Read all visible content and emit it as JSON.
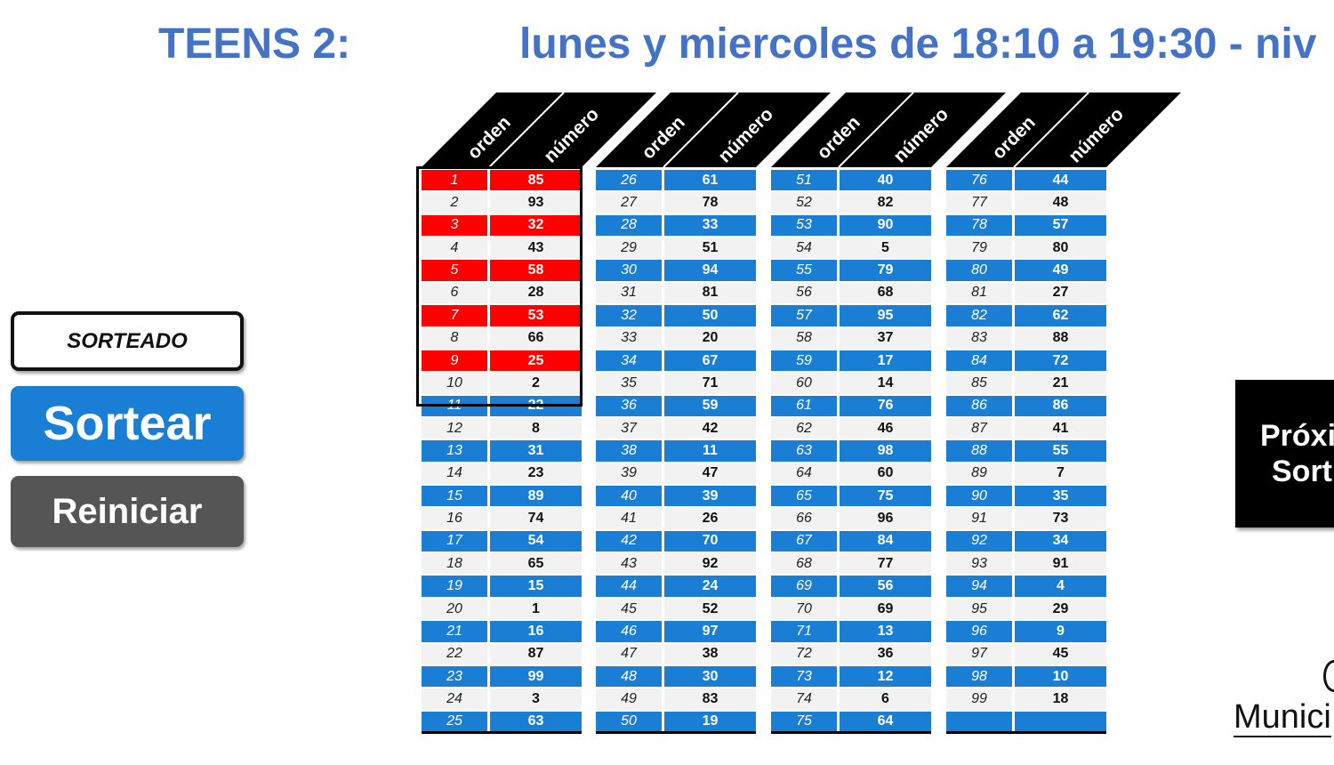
{
  "header": {
    "title_left": "TEENS 2:",
    "title_right": "lunes y miercoles de 18:10 a 19:30 - niv"
  },
  "buttons": {
    "sorteado_label": "SORTEADO",
    "sortear_label": "Sortear",
    "reiniciar_label": "Reiniciar"
  },
  "table": {
    "header_orden": "orden",
    "header_numero": "número",
    "columns": [
      [
        {
          "orden": "1",
          "numero": "85",
          "state": "red"
        },
        {
          "orden": "2",
          "numero": "93",
          "state": "white"
        },
        {
          "orden": "3",
          "numero": "32",
          "state": "red"
        },
        {
          "orden": "4",
          "numero": "43",
          "state": "white"
        },
        {
          "orden": "5",
          "numero": "58",
          "state": "red"
        },
        {
          "orden": "6",
          "numero": "28",
          "state": "white"
        },
        {
          "orden": "7",
          "numero": "53",
          "state": "red"
        },
        {
          "orden": "8",
          "numero": "66",
          "state": "white"
        },
        {
          "orden": "9",
          "numero": "25",
          "state": "red"
        },
        {
          "orden": "10",
          "numero": "2",
          "state": "white"
        },
        {
          "orden": "11",
          "numero": "22",
          "state": "blue"
        },
        {
          "orden": "12",
          "numero": "8",
          "state": "white"
        },
        {
          "orden": "13",
          "numero": "31",
          "state": "blue"
        },
        {
          "orden": "14",
          "numero": "23",
          "state": "white"
        },
        {
          "orden": "15",
          "numero": "89",
          "state": "blue"
        },
        {
          "orden": "16",
          "numero": "74",
          "state": "white"
        },
        {
          "orden": "17",
          "numero": "54",
          "state": "blue"
        },
        {
          "orden": "18",
          "numero": "65",
          "state": "white"
        },
        {
          "orden": "19",
          "numero": "15",
          "state": "blue"
        },
        {
          "orden": "20",
          "numero": "1",
          "state": "white"
        },
        {
          "orden": "21",
          "numero": "16",
          "state": "blue"
        },
        {
          "orden": "22",
          "numero": "87",
          "state": "white"
        },
        {
          "orden": "23",
          "numero": "99",
          "state": "blue"
        },
        {
          "orden": "24",
          "numero": "3",
          "state": "white"
        },
        {
          "orden": "25",
          "numero": "63",
          "state": "blue"
        }
      ],
      [
        {
          "orden": "26",
          "numero": "61",
          "state": "blue"
        },
        {
          "orden": "27",
          "numero": "78",
          "state": "white"
        },
        {
          "orden": "28",
          "numero": "33",
          "state": "blue"
        },
        {
          "orden": "29",
          "numero": "51",
          "state": "white"
        },
        {
          "orden": "30",
          "numero": "94",
          "state": "blue"
        },
        {
          "orden": "31",
          "numero": "81",
          "state": "white"
        },
        {
          "orden": "32",
          "numero": "50",
          "state": "blue"
        },
        {
          "orden": "33",
          "numero": "20",
          "state": "white"
        },
        {
          "orden": "34",
          "numero": "67",
          "state": "blue"
        },
        {
          "orden": "35",
          "numero": "71",
          "state": "white"
        },
        {
          "orden": "36",
          "numero": "59",
          "state": "blue"
        },
        {
          "orden": "37",
          "numero": "42",
          "state": "white"
        },
        {
          "orden": "38",
          "numero": "11",
          "state": "blue"
        },
        {
          "orden": "39",
          "numero": "47",
          "state": "white"
        },
        {
          "orden": "40",
          "numero": "39",
          "state": "blue"
        },
        {
          "orden": "41",
          "numero": "26",
          "state": "white"
        },
        {
          "orden": "42",
          "numero": "70",
          "state": "blue"
        },
        {
          "orden": "43",
          "numero": "92",
          "state": "white"
        },
        {
          "orden": "44",
          "numero": "24",
          "state": "blue"
        },
        {
          "orden": "45",
          "numero": "52",
          "state": "white"
        },
        {
          "orden": "46",
          "numero": "97",
          "state": "blue"
        },
        {
          "orden": "47",
          "numero": "38",
          "state": "white"
        },
        {
          "orden": "48",
          "numero": "30",
          "state": "blue"
        },
        {
          "orden": "49",
          "numero": "83",
          "state": "white"
        },
        {
          "orden": "50",
          "numero": "19",
          "state": "blue"
        }
      ],
      [
        {
          "orden": "51",
          "numero": "40",
          "state": "blue"
        },
        {
          "orden": "52",
          "numero": "82",
          "state": "white"
        },
        {
          "orden": "53",
          "numero": "90",
          "state": "blue"
        },
        {
          "orden": "54",
          "numero": "5",
          "state": "white"
        },
        {
          "orden": "55",
          "numero": "79",
          "state": "blue"
        },
        {
          "orden": "56",
          "numero": "68",
          "state": "white"
        },
        {
          "orden": "57",
          "numero": "95",
          "state": "blue"
        },
        {
          "orden": "58",
          "numero": "37",
          "state": "white"
        },
        {
          "orden": "59",
          "numero": "17",
          "state": "blue"
        },
        {
          "orden": "60",
          "numero": "14",
          "state": "white"
        },
        {
          "orden": "61",
          "numero": "76",
          "state": "blue"
        },
        {
          "orden": "62",
          "numero": "46",
          "state": "white"
        },
        {
          "orden": "63",
          "numero": "98",
          "state": "blue"
        },
        {
          "orden": "64",
          "numero": "60",
          "state": "white"
        },
        {
          "orden": "65",
          "numero": "75",
          "state": "blue"
        },
        {
          "orden": "66",
          "numero": "96",
          "state": "white"
        },
        {
          "orden": "67",
          "numero": "84",
          "state": "blue"
        },
        {
          "orden": "68",
          "numero": "77",
          "state": "white"
        },
        {
          "orden": "69",
          "numero": "56",
          "state": "blue"
        },
        {
          "orden": "70",
          "numero": "69",
          "state": "white"
        },
        {
          "orden": "71",
          "numero": "13",
          "state": "blue"
        },
        {
          "orden": "72",
          "numero": "36",
          "state": "white"
        },
        {
          "orden": "73",
          "numero": "12",
          "state": "blue"
        },
        {
          "orden": "74",
          "numero": "6",
          "state": "white"
        },
        {
          "orden": "75",
          "numero": "64",
          "state": "blue"
        }
      ],
      [
        {
          "orden": "76",
          "numero": "44",
          "state": "blue"
        },
        {
          "orden": "77",
          "numero": "48",
          "state": "white"
        },
        {
          "orden": "78",
          "numero": "57",
          "state": "blue"
        },
        {
          "orden": "79",
          "numero": "80",
          "state": "white"
        },
        {
          "orden": "80",
          "numero": "49",
          "state": "blue"
        },
        {
          "orden": "81",
          "numero": "27",
          "state": "white"
        },
        {
          "orden": "82",
          "numero": "62",
          "state": "blue"
        },
        {
          "orden": "83",
          "numero": "88",
          "state": "white"
        },
        {
          "orden": "84",
          "numero": "72",
          "state": "blue"
        },
        {
          "orden": "85",
          "numero": "21",
          "state": "white"
        },
        {
          "orden": "86",
          "numero": "86",
          "state": "blue"
        },
        {
          "orden": "87",
          "numero": "41",
          "state": "white"
        },
        {
          "orden": "88",
          "numero": "55",
          "state": "blue"
        },
        {
          "orden": "89",
          "numero": "7",
          "state": "white"
        },
        {
          "orden": "90",
          "numero": "35",
          "state": "blue"
        },
        {
          "orden": "91",
          "numero": "73",
          "state": "white"
        },
        {
          "orden": "92",
          "numero": "34",
          "state": "blue"
        },
        {
          "orden": "93",
          "numero": "91",
          "state": "white"
        },
        {
          "orden": "94",
          "numero": "4",
          "state": "blue"
        },
        {
          "orden": "95",
          "numero": "29",
          "state": "white"
        },
        {
          "orden": "96",
          "numero": "9",
          "state": "blue"
        },
        {
          "orden": "97",
          "numero": "45",
          "state": "white"
        },
        {
          "orden": "98",
          "numero": "10",
          "state": "blue"
        },
        {
          "orden": "99",
          "numero": "18",
          "state": "white"
        },
        {
          "orden": "",
          "numero": "",
          "state": "blue"
        }
      ]
    ]
  },
  "next_panel": {
    "line1": "Próxi",
    "line2": "Sort"
  },
  "logo": {
    "text": "Munici",
    "icon": "municipality-logo-icon"
  },
  "colors": {
    "title": "#4472c4",
    "blue": "#1a7fd4",
    "drawn_red": "#ff0000",
    "header_black": "#000000",
    "reset_gray": "#555555"
  }
}
